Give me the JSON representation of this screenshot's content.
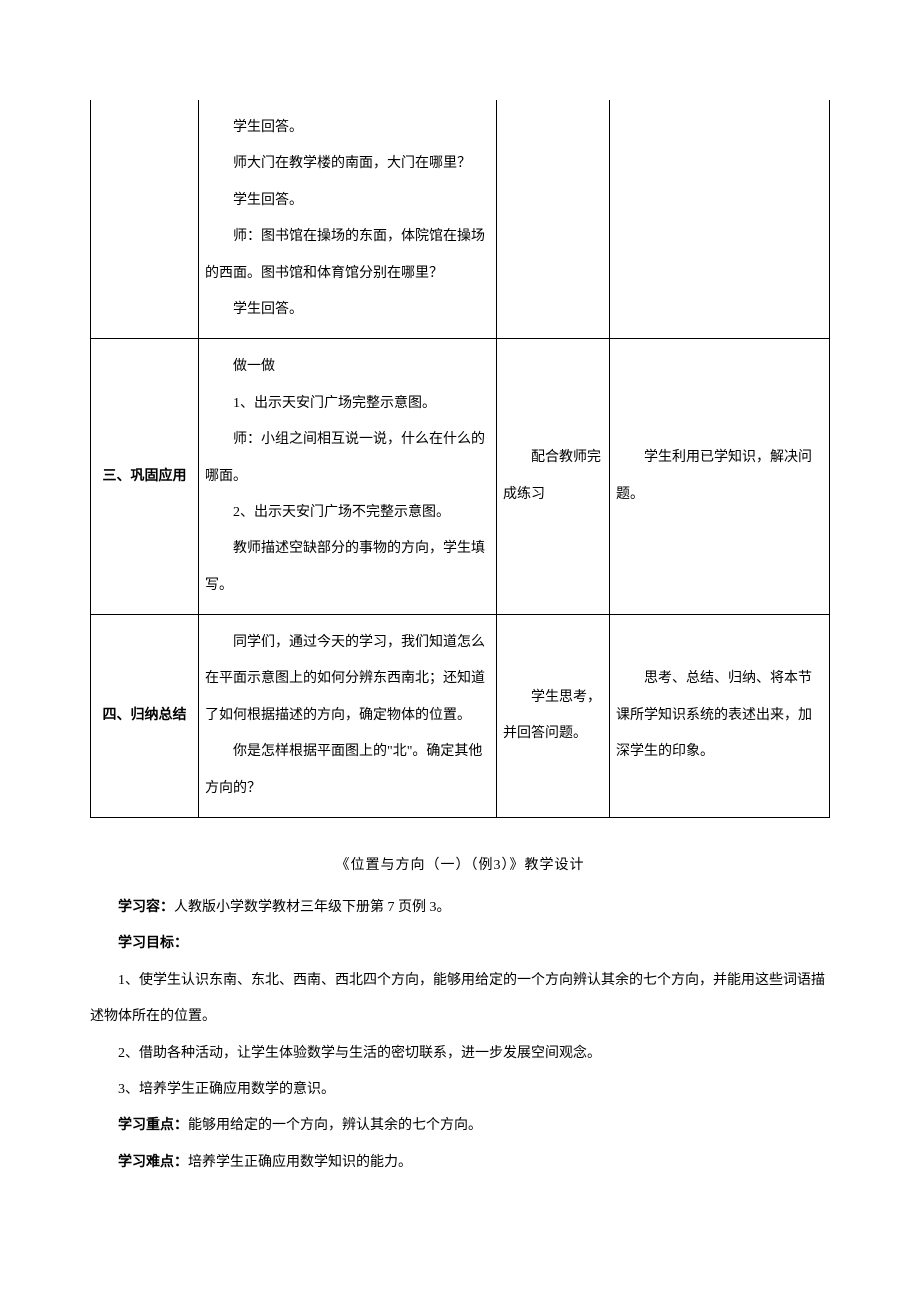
{
  "table": {
    "row1": {
      "col2_lines": [
        "学生回答。",
        "师大门在教学楼的南面，大门在哪里？",
        "学生回答。",
        "师：图书馆在操场的东面，体院馆在操场的西面。图书馆和体育馆分别在哪里？",
        "学生回答。"
      ]
    },
    "row2": {
      "col1": "三、巩固应用",
      "col2_lines": [
        "做一做",
        "1、出示天安门广场完整示意图。",
        "师：小组之间相互说一说，什么在什么的哪面。",
        "2、出示天安门广场不完整示意图。",
        "教师描述空缺部分的事物的方向，学生填写。"
      ],
      "col3": "配合教师完成练习",
      "col4": "学生利用已学知识，解决问题。"
    },
    "row3": {
      "col1": "四、归纳总结",
      "col2_lines": [
        "同学们，通过今天的学习，我们知道怎么在平面示意图上的如何分辨东西南北；还知道了如何根据描述的方向，确定物体的位置。",
        "你是怎样根据平面图上的\"北\"。确定其他方向的？"
      ],
      "col3": "学生思考，并回答问题。",
      "col4": "思考、总结、归纳、将本节课所学知识系统的表述出来，加深学生的印象。"
    }
  },
  "section": {
    "title": "《位置与方向（一）（例3）》教学设计",
    "p1_label": "学习容：",
    "p1_text": "人教版小学数学教材三年级下册第 7 页例 3。",
    "p2_label": "学习目标：",
    "p3": "1、使学生认识东南、东北、西南、西北四个方向，能够用给定的一个方向辨认其余的七个方向，并能用这些词语描述物体所在的位置。",
    "p4": "2、借助各种活动，让学生体验数学与生活的密切联系，进一步发展空间观念。",
    "p5": "3、培养学生正确应用数学的意识。",
    "p6_label": "学习重点：",
    "p6_text": "能够用给定的一个方向，辨认其余的七个方向。",
    "p7_label": "学习难点：",
    "p7_text": "培养学生正确应用数学知识的能力。"
  }
}
